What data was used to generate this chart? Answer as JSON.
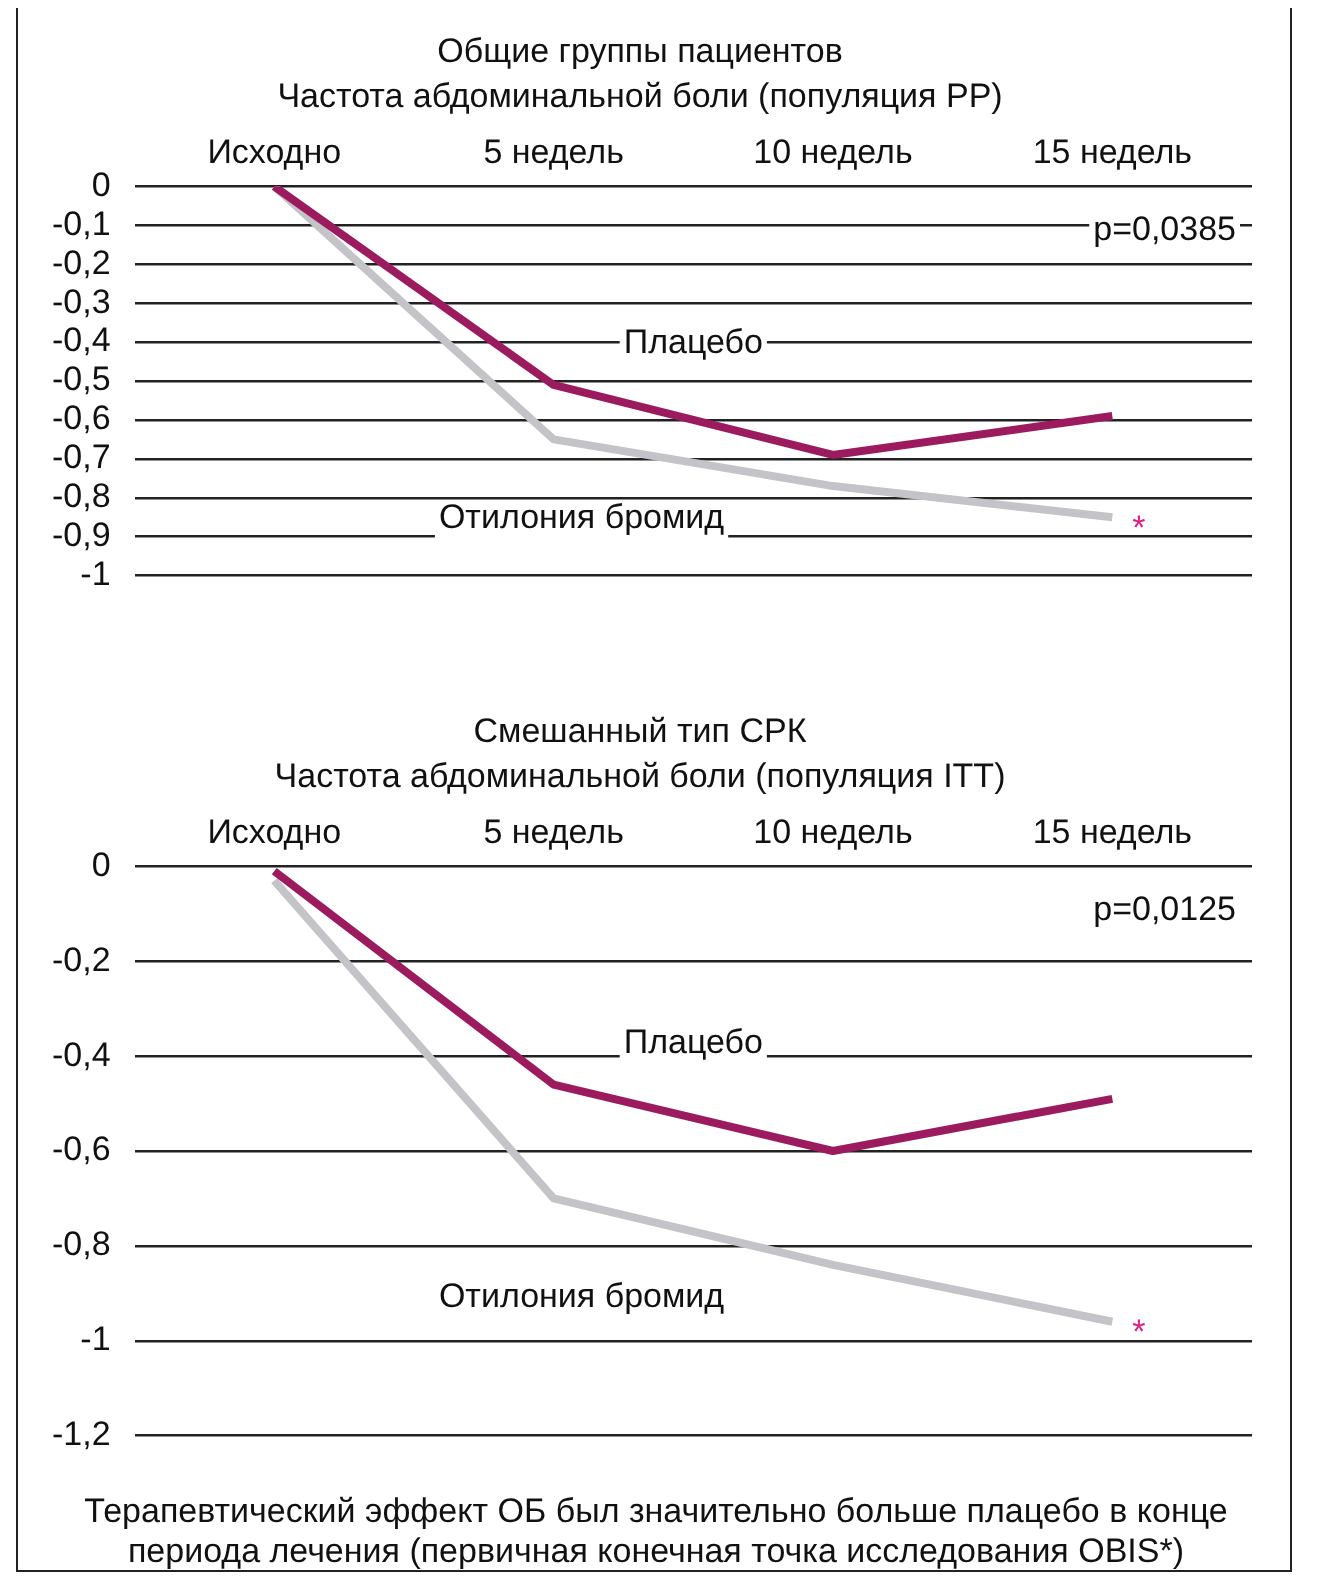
{
  "chart_data": [
    {
      "type": "line",
      "title": "Общие группы пациентов",
      "subtitle": "Частота абдоминальной боли (популяция РР)",
      "categories": [
        "Исходно",
        "5 недель",
        "10 недель",
        "15 недель"
      ],
      "series": [
        {
          "name": "Плацебо",
          "color": "#9b1b5e",
          "values": [
            0,
            -0.51,
            -0.69,
            -0.59
          ]
        },
        {
          "name": "Отилония бромид",
          "color": "#c4c4c8",
          "values": [
            0,
            -0.65,
            -0.77,
            -0.85
          ]
        }
      ],
      "ylim": [
        -1,
        0
      ],
      "yticks": [
        {
          "value": 0,
          "label": "0"
        },
        {
          "value": -0.1,
          "label": "-0,1"
        },
        {
          "value": -0.2,
          "label": "-0,2"
        },
        {
          "value": -0.3,
          "label": "-0,3"
        },
        {
          "value": -0.4,
          "label": "-0,4"
        },
        {
          "value": -0.5,
          "label": "-0,5"
        },
        {
          "value": -0.6,
          "label": "-0,6"
        },
        {
          "value": -0.7,
          "label": "-0,7"
        },
        {
          "value": -0.8,
          "label": "-0,8"
        },
        {
          "value": -0.9,
          "label": "-0,9"
        },
        {
          "value": -1,
          "label": "-1"
        }
      ],
      "grid": "y",
      "legend": false,
      "marker": "none",
      "line_style": "solid",
      "annotations": [
        "p=0,0385",
        {
          "text": "*",
          "x": "15 недель",
          "y": -0.85
        }
      ]
    },
    {
      "type": "line",
      "title": "Смешанный тип СРК",
      "subtitle": "Частота абдоминальной боли (популяция ITT)",
      "categories": [
        "Исходно",
        "5 недель",
        "10 недель",
        "15 недель"
      ],
      "series": [
        {
          "name": "Плацебо",
          "color": "#9b1b5e",
          "values": [
            -0.01,
            -0.46,
            -0.6,
            -0.49
          ]
        },
        {
          "name": "Отилония бромид",
          "color": "#c4c4c8",
          "values": [
            -0.03,
            -0.7,
            -0.84,
            -0.96
          ]
        }
      ],
      "ylim": [
        -1.2,
        0
      ],
      "yticks": [
        {
          "value": 0,
          "label": "0"
        },
        {
          "value": -0.2,
          "label": "-0,2"
        },
        {
          "value": -0.4,
          "label": "-0,4"
        },
        {
          "value": -0.6,
          "label": "-0,6"
        },
        {
          "value": -0.8,
          "label": "-0,8"
        },
        {
          "value": -1,
          "label": "-1"
        },
        {
          "value": -1.2,
          "label": "-1,2"
        }
      ],
      "grid": "y",
      "legend": false,
      "marker": "none",
      "line_style": "solid",
      "annotations": [
        "p=0,0125",
        {
          "text": "*",
          "x": "15 недель",
          "y": -0.96
        }
      ]
    },
    {
      "type": "other",
      "annotations": [
        "Терапевтический эффект ОБ был значительно больше плацебо в конце периода лечения (первичная конечная точка исследования OBIS*)"
      ]
    }
  ]
}
